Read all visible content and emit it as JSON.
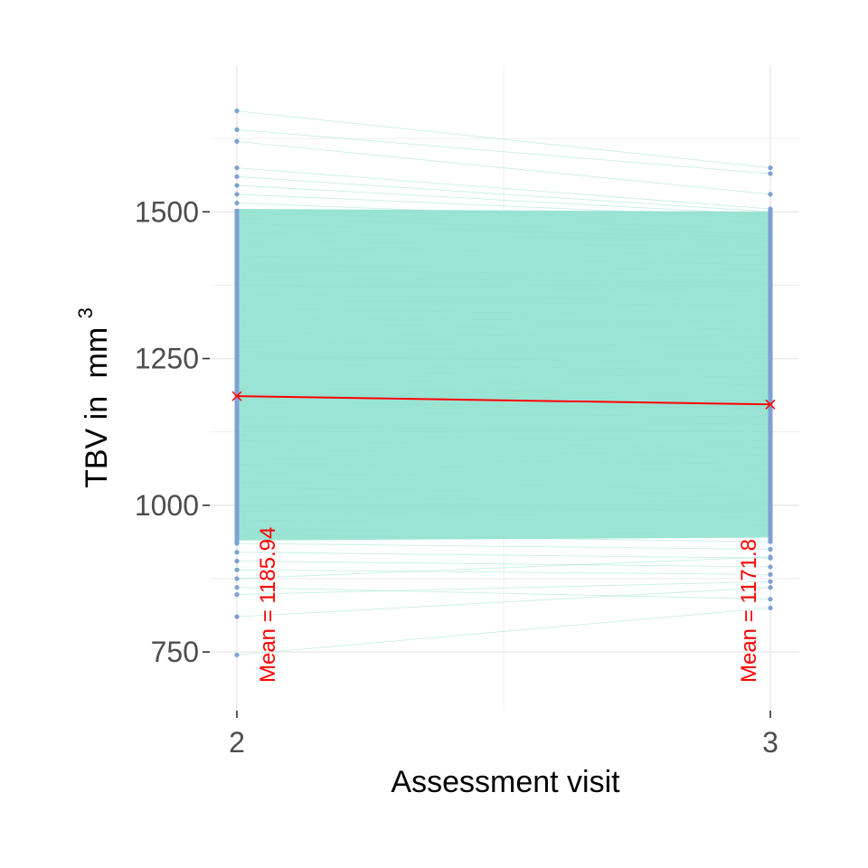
{
  "chart_data": {
    "type": "line",
    "title": "",
    "xlabel": "Assessment visit",
    "ylabel": "TBV in",
    "ylabel_unit_base": "mm",
    "ylabel_unit_exp": "3",
    "x_categories": [
      "2",
      "3"
    ],
    "ylim": [
      650,
      1750
    ],
    "y_ticks": [
      750,
      1000,
      1250,
      1500
    ],
    "y_tick_labels": [
      "750",
      "1000",
      "1250",
      "1500"
    ],
    "grid": true,
    "legend": "none",
    "series": [
      {
        "x": [
          "2",
          "3"
        ],
        "y": [
          1185.94,
          1171.8
        ]
      }
    ],
    "annotations": [
      {
        "x": "2",
        "text": "Mean = 1185.94"
      },
      {
        "x": "3",
        "text": "Mean = 1171.8"
      }
    ],
    "individual_lines": [
      [
        1672,
        1575
      ],
      [
        1640,
        1565
      ],
      [
        1620,
        1530
      ],
      [
        1575,
        1505
      ],
      [
        1560,
        1500
      ],
      [
        1545,
        1495
      ],
      [
        1530,
        1490
      ],
      [
        1515,
        1480
      ],
      [
        1500,
        1470
      ],
      [
        1490,
        1462
      ],
      [
        1480,
        1455
      ],
      [
        1465,
        1450
      ],
      [
        1450,
        1440
      ],
      [
        1440,
        1425
      ],
      [
        1425,
        1410
      ],
      [
        1410,
        1400
      ],
      [
        1400,
        1392
      ],
      [
        1390,
        1378
      ],
      [
        1375,
        1365
      ],
      [
        1360,
        1350
      ],
      [
        1350,
        1340
      ],
      [
        1335,
        1322
      ],
      [
        1320,
        1312
      ],
      [
        1310,
        1300
      ],
      [
        1295,
        1285
      ],
      [
        1280,
        1270
      ],
      [
        1270,
        1258
      ],
      [
        1255,
        1242
      ],
      [
        1240,
        1230
      ],
      [
        1230,
        1218
      ],
      [
        1215,
        1205
      ],
      [
        1200,
        1190
      ],
      [
        1190,
        1178
      ],
      [
        1175,
        1165
      ],
      [
        1160,
        1150
      ],
      [
        1150,
        1138
      ],
      [
        1135,
        1125
      ],
      [
        1120,
        1110
      ],
      [
        1110,
        1098
      ],
      [
        1095,
        1085
      ],
      [
        1080,
        1070
      ],
      [
        1070,
        1058
      ],
      [
        1055,
        1045
      ],
      [
        1040,
        1030
      ],
      [
        1030,
        1018
      ],
      [
        1015,
        1005
      ],
      [
        1000,
        990
      ],
      [
        990,
        978
      ],
      [
        975,
        965
      ],
      [
        960,
        950
      ],
      [
        950,
        938
      ],
      [
        935,
        925
      ],
      [
        920,
        910
      ],
      [
        905,
        895
      ],
      [
        890,
        882
      ],
      [
        875,
        912
      ],
      [
        860,
        840
      ],
      [
        848,
        870
      ],
      [
        810,
        860
      ],
      [
        745,
        825
      ]
    ],
    "colors": {
      "lines": "#8fe1cf",
      "points": "#7ea1d3",
      "mean": "#ff0000",
      "grid": "#ebebeb"
    }
  }
}
